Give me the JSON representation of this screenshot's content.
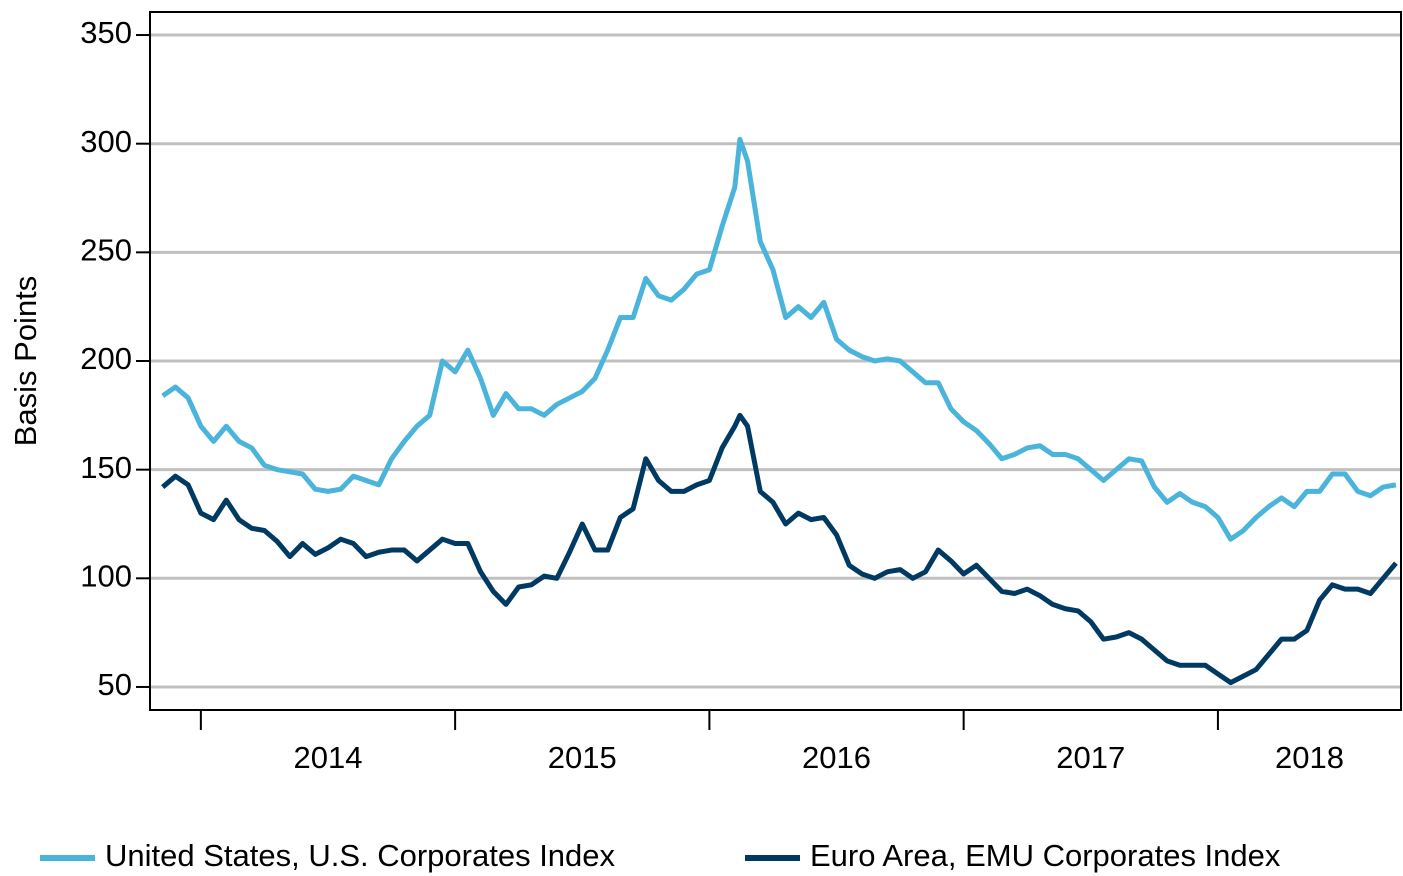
{
  "chart_data": {
    "type": "line",
    "y_label": "Basis Points",
    "x": [
      2013.85,
      2013.9,
      2013.95,
      2014.0,
      2014.05,
      2014.1,
      2014.15,
      2014.2,
      2014.25,
      2014.3,
      2014.35,
      2014.4,
      2014.45,
      2014.5,
      2014.55,
      2014.6,
      2014.65,
      2014.7,
      2014.75,
      2014.8,
      2014.85,
      2014.9,
      2014.95,
      2015.0,
      2015.05,
      2015.1,
      2015.15,
      2015.2,
      2015.25,
      2015.3,
      2015.35,
      2015.4,
      2015.45,
      2015.5,
      2015.55,
      2015.6,
      2015.65,
      2015.7,
      2015.75,
      2015.8,
      2015.85,
      2015.9,
      2015.95,
      2016.0,
      2016.05,
      2016.1,
      2016.12,
      2016.15,
      2016.2,
      2016.25,
      2016.3,
      2016.35,
      2016.4,
      2016.45,
      2016.5,
      2016.55,
      2016.6,
      2016.65,
      2016.7,
      2016.75,
      2016.8,
      2016.85,
      2016.9,
      2016.95,
      2017.0,
      2017.05,
      2017.1,
      2017.15,
      2017.2,
      2017.25,
      2017.3,
      2017.35,
      2017.4,
      2017.45,
      2017.5,
      2017.55,
      2017.6,
      2017.65,
      2017.7,
      2017.75,
      2017.8,
      2017.85,
      2017.9,
      2017.95,
      2018.0,
      2018.05,
      2018.1,
      2018.15,
      2018.2,
      2018.25,
      2018.3,
      2018.35,
      2018.4,
      2018.45,
      2018.5,
      2018.55,
      2018.6,
      2018.65,
      2018.7
    ],
    "series": [
      {
        "name": "United States, U.S. Corporates Index",
        "color": "#4bb4da",
        "values": [
          184,
          188,
          183,
          170,
          163,
          170,
          163,
          160,
          152,
          150,
          149,
          148,
          141,
          140,
          141,
          147,
          145,
          143,
          155,
          163,
          170,
          175,
          200,
          195,
          205,
          192,
          175,
          185,
          178,
          178,
          175,
          180,
          183,
          186,
          192,
          205,
          220,
          220,
          238,
          230,
          228,
          233,
          240,
          242,
          262,
          280,
          302,
          292,
          255,
          242,
          220,
          225,
          220,
          227,
          210,
          205,
          202,
          200,
          201,
          200,
          195,
          190,
          190,
          178,
          172,
          168,
          162,
          155,
          157,
          160,
          161,
          157,
          157,
          155,
          150,
          145,
          150,
          155,
          154,
          142,
          135,
          139,
          135,
          133,
          128,
          118,
          122,
          128,
          133,
          137,
          133,
          140,
          140,
          148,
          148,
          140,
          138,
          142,
          143
        ]
      },
      {
        "name": "Euro Area, EMU Corporates Index",
        "color": "#003a63",
        "values": [
          142,
          147,
          143,
          130,
          127,
          136,
          127,
          123,
          122,
          117,
          110,
          116,
          111,
          114,
          118,
          116,
          110,
          112,
          113,
          113,
          108,
          113,
          118,
          116,
          116,
          103,
          94,
          88,
          96,
          97,
          101,
          100,
          112,
          125,
          113,
          113,
          128,
          132,
          155,
          145,
          140,
          140,
          143,
          145,
          160,
          170,
          175,
          170,
          140,
          135,
          125,
          130,
          127,
          128,
          120,
          106,
          102,
          100,
          103,
          104,
          100,
          103,
          113,
          108,
          102,
          106,
          100,
          94,
          93,
          95,
          92,
          88,
          86,
          85,
          80,
          72,
          73,
          75,
          72,
          67,
          62,
          60,
          60,
          60,
          56,
          52,
          55,
          58,
          65,
          72,
          72,
          76,
          90,
          97,
          95,
          95,
          93,
          100,
          107
        ]
      }
    ],
    "xlim": [
      2013.8,
      2018.72
    ],
    "xticks": [
      {
        "value": 2014.5,
        "label": "2014"
      },
      {
        "value": 2015.5,
        "label": "2015"
      },
      {
        "value": 2016.5,
        "label": "2016"
      },
      {
        "value": 2017.5,
        "label": "2017"
      },
      {
        "value": 2018.36,
        "label": "2018"
      }
    ],
    "x_boundary_ticks": [
      2014,
      2015,
      2016,
      2017,
      2018
    ],
    "ylim": [
      39.4,
      360.6
    ],
    "yticks": [
      50,
      100,
      150,
      200,
      250,
      300,
      350
    ],
    "grid": true,
    "legend": "bottom"
  }
}
